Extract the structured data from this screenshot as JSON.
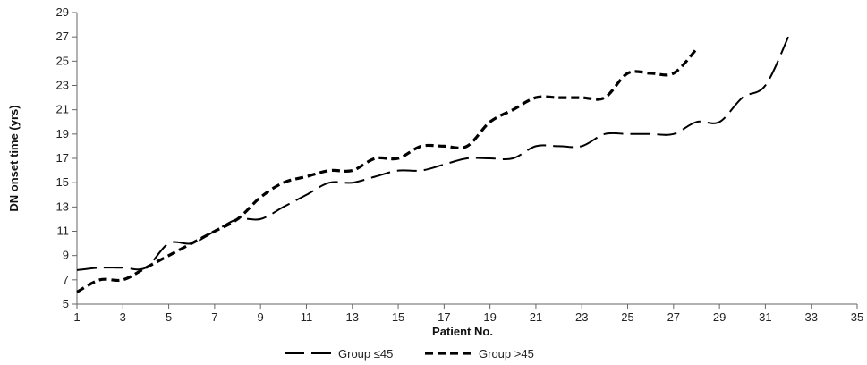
{
  "chart_data": {
    "type": "line",
    "title": "",
    "xlabel": "Patient No.",
    "ylabel": "DN onset time (yrs)",
    "xlim": [
      1,
      35
    ],
    "ylim": [
      5,
      29
    ],
    "x_ticks": [
      1,
      3,
      5,
      7,
      9,
      11,
      13,
      15,
      17,
      19,
      21,
      23,
      25,
      27,
      29,
      31,
      33,
      35
    ],
    "y_ticks": [
      5,
      7,
      9,
      11,
      13,
      15,
      17,
      19,
      21,
      23,
      25,
      27,
      29
    ],
    "grid": false,
    "legend_position": "bottom",
    "series": [
      {
        "name": "Group ≤45",
        "dash": "long-dash",
        "color": "#000000",
        "x": [
          1,
          2,
          3,
          4,
          5,
          6,
          7,
          8,
          9,
          10,
          11,
          12,
          13,
          14,
          15,
          16,
          17,
          18,
          19,
          20,
          21,
          22,
          23,
          24,
          25,
          26,
          27,
          28,
          29,
          30,
          31,
          32
        ],
        "y": [
          7.8,
          8,
          8,
          8,
          10,
          10,
          11,
          12,
          12,
          13,
          14,
          15,
          15,
          15.5,
          16,
          16,
          16.5,
          17,
          17,
          17,
          18,
          18,
          18,
          19,
          19,
          19,
          19,
          20,
          20,
          22,
          23,
          27
        ]
      },
      {
        "name": "Group >45",
        "dash": "short-dash",
        "color": "#000000",
        "x": [
          1,
          2,
          3,
          4,
          5,
          6,
          7,
          8,
          9,
          10,
          11,
          12,
          13,
          14,
          15,
          16,
          17,
          18,
          19,
          20,
          21,
          22,
          23,
          24,
          25,
          26,
          27,
          28
        ],
        "y": [
          6,
          7,
          7,
          8,
          9,
          10,
          11,
          12,
          13.8,
          15,
          15.5,
          16,
          16,
          17,
          17,
          18,
          18,
          18,
          20,
          21,
          22,
          22,
          22,
          22,
          24,
          24,
          24,
          26
        ]
      }
    ]
  }
}
